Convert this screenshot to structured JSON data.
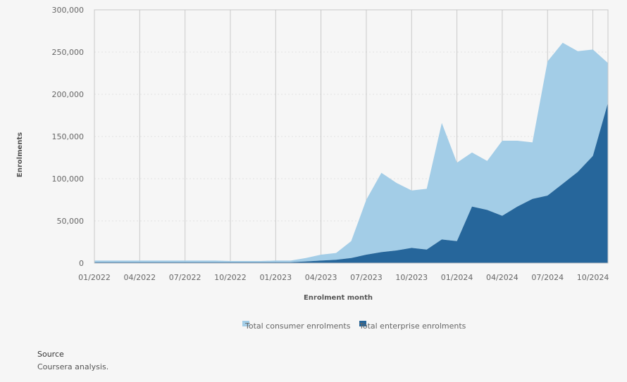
{
  "chart_data": {
    "type": "area",
    "stacked": true,
    "xlabel": "Enrolment month",
    "ylabel": "Enrolments",
    "ylim": [
      0,
      300000
    ],
    "yticks": [
      0,
      50000,
      100000,
      150000,
      200000,
      250000,
      300000
    ],
    "ytick_labels": [
      "0",
      "50,000",
      "100,000",
      "150,000",
      "200,000",
      "250,000",
      "300,000"
    ],
    "xtick_labels": [
      "01/2022",
      "04/2022",
      "07/2022",
      "10/2022",
      "01/2023",
      "04/2023",
      "07/2023",
      "10/2023",
      "01/2024",
      "04/2024",
      "07/2024",
      "10/2024"
    ],
    "grid": true,
    "legend_position": "bottom",
    "x": [
      "01/2022",
      "02/2022",
      "03/2022",
      "04/2022",
      "05/2022",
      "06/2022",
      "07/2022",
      "08/2022",
      "09/2022",
      "10/2022",
      "11/2022",
      "12/2022",
      "01/2023",
      "02/2023",
      "03/2023",
      "04/2023",
      "05/2023",
      "06/2023",
      "07/2023",
      "08/2023",
      "09/2023",
      "10/2023",
      "11/2023",
      "12/2023",
      "01/2024",
      "02/2024",
      "03/2024",
      "04/2024",
      "05/2024",
      "06/2024",
      "07/2024",
      "08/2024",
      "09/2024",
      "10/2024",
      "11/2024"
    ],
    "series": [
      {
        "name": "Total enterprise enrolments",
        "color": "#26669b",
        "values": [
          1000,
          1000,
          1000,
          1000,
          1000,
          1000,
          1000,
          1000,
          1000,
          1000,
          1000,
          1000,
          1000,
          1000,
          2000,
          3000,
          4000,
          6000,
          10000,
          13000,
          15000,
          18000,
          16000,
          28000,
          26000,
          67000,
          63000,
          56000,
          67000,
          76000,
          80000,
          94000,
          108000,
          127000,
          190000
        ]
      },
      {
        "name": "Total consumer enrolments",
        "color": "#a3cde7",
        "values": [
          2000,
          2000,
          2000,
          2000,
          2000,
          2000,
          2000,
          2000,
          2000,
          1500,
          1500,
          1500,
          2000,
          2000,
          4000,
          7000,
          8000,
          20000,
          65000,
          94000,
          80000,
          68000,
          72000,
          138000,
          93000,
          64000,
          58000,
          89000,
          78000,
          67000,
          159000,
          167000,
          143000,
          126000,
          47000
        ]
      }
    ]
  },
  "source": {
    "title": "Source",
    "text": "Coursera analysis."
  }
}
